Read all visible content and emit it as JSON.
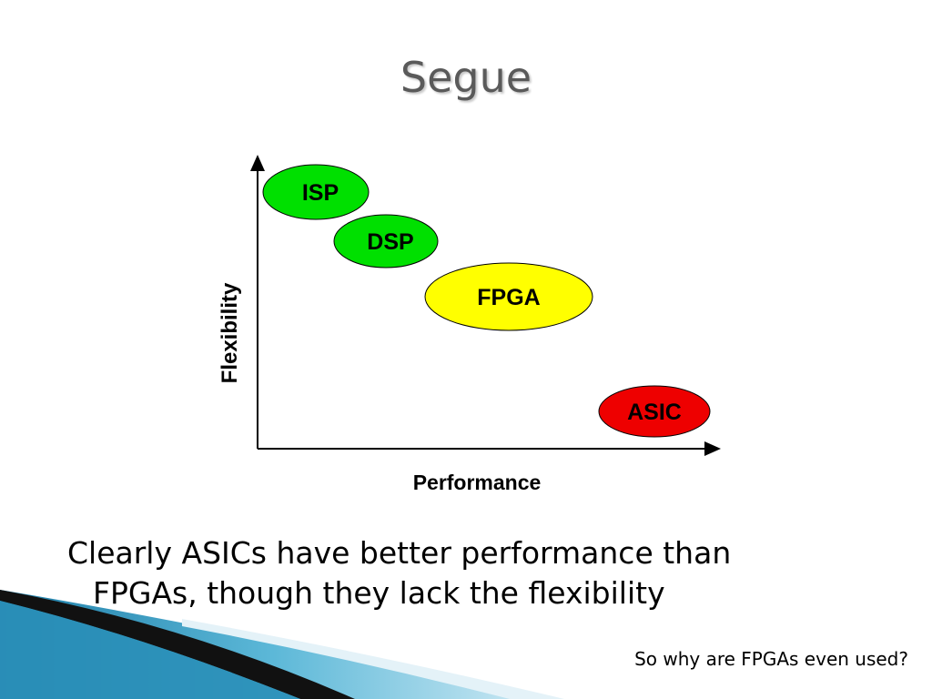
{
  "title": "Segue",
  "diagram": {
    "y_axis_label": "Flexibility",
    "x_axis_label": "Performance",
    "nodes": [
      {
        "label": "ISP"
      },
      {
        "label": "DSP"
      },
      {
        "label": "FPGA"
      },
      {
        "label": "ASIC"
      }
    ]
  },
  "body": "Clearly ASICs have better performance than FPGAs, though they lack the flexibility",
  "footnote": "So why are FPGAs even used?"
}
